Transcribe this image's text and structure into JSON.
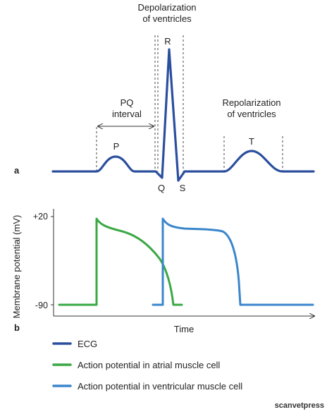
{
  "labels": {
    "depolarization_line1": "Depolarization",
    "depolarization_line2": "of ventricles",
    "pq_line1": "PQ",
    "pq_line2": "interval",
    "repolarization_line1": "Repolarization",
    "repolarization_line2": "of ventricles",
    "P": "P",
    "Q": "Q",
    "R": "R",
    "S": "S",
    "T": "T",
    "panel_a": "a",
    "panel_b": "b"
  },
  "axes": {
    "ylabel": "Membrane potential (mV)",
    "xlabel": "Time",
    "ytick_top": "+20",
    "ytick_bottom": "-90"
  },
  "legend": [
    {
      "label": "ECG",
      "color": "#2b4f9e"
    },
    {
      "label": "Action potential in atrial muscle cell",
      "color": "#3aa845"
    },
    {
      "label": "Action potential in ventricular muscle cell",
      "color": "#3a86cc"
    }
  ],
  "colors": {
    "ecg": "#2b4f9e",
    "atrial": "#3aa845",
    "ventricular": "#3a86cc"
  },
  "watermark": "scanvetpress"
}
